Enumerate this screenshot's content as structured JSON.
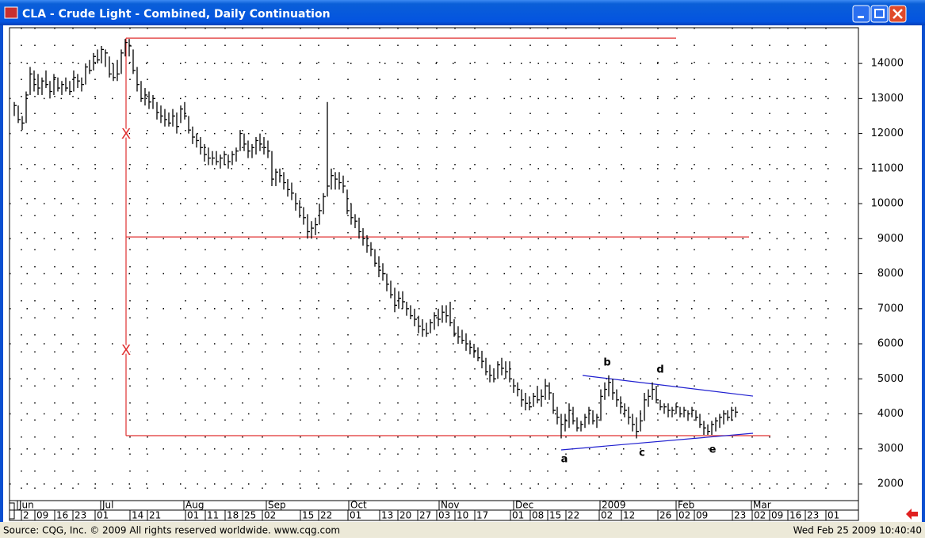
{
  "chart_data": {
    "type": "ohlc",
    "title": "CLA - Crude Light - Combined, Daily Continuation",
    "source": "Source: CQG, Inc. © 2009 All rights reserved worldwide. www.cqg.com",
    "timestamp": "Wed Feb 25 2009 10:40:40",
    "color": "#000000",
    "grid": true,
    "ylim": [
      1525,
      15020
    ],
    "yticks": [
      2000,
      3000,
      4000,
      5000,
      6000,
      7000,
      8000,
      9000,
      10000,
      11000,
      12000,
      13000,
      14000
    ],
    "xlim": [
      -1.2,
      213
    ],
    "month_ticks": [
      {
        "value": 0.8,
        "label": "Jun"
      },
      {
        "value": 21.8,
        "label": "Jul"
      },
      {
        "value": 42.8,
        "label": "Aug"
      },
      {
        "value": 63.6,
        "label": "Sep"
      },
      {
        "value": 84.4,
        "label": "Oct"
      },
      {
        "value": 107.2,
        "label": "Nov"
      },
      {
        "value": 126.0,
        "label": "Dec"
      },
      {
        "value": 147.8,
        "label": "2009"
      },
      {
        "value": 167.0,
        "label": "Feb"
      },
      {
        "value": 186.0,
        "label": "Mar"
      }
    ],
    "xticks": [
      {
        "value": 1.8,
        "label": "2"
      },
      {
        "value": 5.2,
        "label": "09"
      },
      {
        "value": 10.2,
        "label": "16"
      },
      {
        "value": 14.8,
        "label": "23"
      },
      {
        "value": 20.4,
        "label": "01"
      },
      {
        "value": 29.2,
        "label": "14"
      },
      {
        "value": 33.6,
        "label": "21"
      },
      {
        "value": 43.2,
        "label": "01"
      },
      {
        "value": 48.2,
        "label": "11"
      },
      {
        "value": 53.2,
        "label": "18"
      },
      {
        "value": 57.6,
        "label": "25"
      },
      {
        "value": 62.6,
        "label": "02"
      },
      {
        "value": 72.2,
        "label": "15"
      },
      {
        "value": 76.8,
        "label": "22"
      },
      {
        "value": 84.2,
        "label": "01"
      },
      {
        "value": 92.2,
        "label": "13"
      },
      {
        "value": 96.8,
        "label": "20"
      },
      {
        "value": 101.8,
        "label": "27"
      },
      {
        "value": 106.6,
        "label": "03"
      },
      {
        "value": 111.2,
        "label": "10"
      },
      {
        "value": 116.2,
        "label": "17"
      },
      {
        "value": 125.2,
        "label": "01"
      },
      {
        "value": 130.2,
        "label": "08"
      },
      {
        "value": 134.6,
        "label": "15"
      },
      {
        "value": 139.2,
        "label": "22"
      },
      {
        "value": 147.6,
        "label": "02"
      },
      {
        "value": 153.2,
        "label": "12"
      },
      {
        "value": 162.4,
        "label": "26"
      },
      {
        "value": 167.2,
        "label": "02"
      },
      {
        "value": 171.6,
        "label": "09"
      },
      {
        "value": 181.2,
        "label": "23"
      },
      {
        "value": 186.2,
        "label": "02"
      },
      {
        "value": 190.6,
        "label": "09"
      },
      {
        "value": 195.2,
        "label": "16"
      },
      {
        "value": 199.6,
        "label": "23"
      },
      {
        "value": 204.8,
        "label": "01"
      }
    ],
    "bars": [
      [
        12900,
        12500,
        12800
      ],
      [
        12800,
        12300,
        12400
      ],
      [
        12500,
        12100,
        12300
      ],
      [
        13200,
        12300,
        13100
      ],
      [
        13900,
        13100,
        13700
      ],
      [
        13800,
        13200,
        13400
      ],
      [
        13700,
        13100,
        13300
      ],
      [
        13600,
        13100,
        13500
      ],
      [
        13800,
        13300,
        13400
      ],
      [
        13500,
        13000,
        13200
      ],
      [
        13700,
        13100,
        13600
      ],
      [
        13600,
        13200,
        13300
      ],
      [
        13500,
        13100,
        13400
      ],
      [
        13600,
        13200,
        13300
      ],
      [
        13500,
        13100,
        13200
      ],
      [
        13800,
        13200,
        13600
      ],
      [
        13700,
        13300,
        13500
      ],
      [
        13600,
        13200,
        13400
      ],
      [
        14000,
        13400,
        13900
      ],
      [
        14100,
        13700,
        13800
      ],
      [
        14300,
        13800,
        14200
      ],
      [
        14400,
        14000,
        14100
      ],
      [
        14500,
        14000,
        14400
      ],
      [
        14400,
        13900,
        14300
      ],
      [
        14200,
        13600,
        13700
      ],
      [
        14000,
        13500,
        13600
      ],
      [
        14100,
        13500,
        13700
      ],
      [
        14400,
        13700,
        14300
      ],
      [
        14700,
        14200,
        14600
      ],
      [
        14700,
        14200,
        14500
      ],
      [
        14400,
        13700,
        13800
      ],
      [
        13900,
        13200,
        13400
      ],
      [
        13500,
        12900,
        13000
      ],
      [
        13300,
        12800,
        13100
      ],
      [
        13200,
        12700,
        12900
      ],
      [
        13100,
        12700,
        13000
      ],
      [
        12900,
        12400,
        12600
      ],
      [
        12800,
        12300,
        12500
      ],
      [
        12700,
        12200,
        12400
      ],
      [
        12600,
        12200,
        12300
      ],
      [
        12700,
        12200,
        12500
      ],
      [
        12600,
        12000,
        12200
      ],
      [
        12800,
        12300,
        12700
      ],
      [
        12900,
        12400,
        12500
      ],
      [
        12500,
        12000,
        12100
      ],
      [
        12200,
        11700,
        11900
      ],
      [
        12000,
        11600,
        11800
      ],
      [
        11900,
        11400,
        11600
      ],
      [
        11700,
        11200,
        11400
      ],
      [
        11600,
        11100,
        11300
      ],
      [
        11500,
        11100,
        11300
      ],
      [
        11500,
        11100,
        11200
      ],
      [
        11400,
        11000,
        11300
      ],
      [
        11500,
        11100,
        11400
      ],
      [
        11400,
        11000,
        11200
      ],
      [
        11500,
        11100,
        11400
      ],
      [
        11600,
        11200,
        11500
      ],
      [
        12100,
        11500,
        12000
      ],
      [
        12000,
        11500,
        11700
      ],
      [
        11800,
        11300,
        11500
      ],
      [
        11700,
        11300,
        11600
      ],
      [
        11900,
        11400,
        11800
      ],
      [
        12000,
        11500,
        11700
      ],
      [
        11900,
        11400,
        11600
      ],
      [
        11800,
        11300,
        11500
      ],
      [
        11500,
        10500,
        10700
      ],
      [
        11000,
        10500,
        10900
      ],
      [
        11000,
        10600,
        10800
      ],
      [
        10900,
        10400,
        10600
      ],
      [
        10700,
        10200,
        10400
      ],
      [
        10600,
        10100,
        10300
      ],
      [
        10300,
        9800,
        10000
      ],
      [
        10100,
        9600,
        9900
      ],
      [
        9900,
        9400,
        9600
      ],
      [
        9700,
        9000,
        9200
      ],
      [
        9500,
        9000,
        9300
      ],
      [
        9600,
        9100,
        9400
      ],
      [
        10000,
        9400,
        9800
      ],
      [
        10300,
        9700,
        10200
      ],
      [
        12900,
        10200,
        10500
      ],
      [
        11000,
        10400,
        10800
      ],
      [
        10900,
        10400,
        10700
      ],
      [
        10900,
        10400,
        10600
      ],
      [
        10800,
        10300,
        10500
      ],
      [
        10400,
        9700,
        9800
      ],
      [
        10000,
        9400,
        9600
      ],
      [
        9700,
        9300,
        9500
      ],
      [
        9600,
        9000,
        9200
      ],
      [
        9300,
        8800,
        9000
      ],
      [
        9100,
        8600,
        8800
      ],
      [
        8900,
        8500,
        8700
      ],
      [
        8700,
        8200,
        8300
      ],
      [
        8500,
        7900,
        8100
      ],
      [
        8300,
        7800,
        8000
      ],
      [
        8000,
        7500,
        7700
      ],
      [
        7800,
        7300,
        7400
      ],
      [
        7600,
        6900,
        7100
      ],
      [
        7500,
        7000,
        7300
      ],
      [
        7500,
        7000,
        7200
      ],
      [
        7200,
        6800,
        7000
      ],
      [
        7100,
        6700,
        6800
      ],
      [
        7000,
        6500,
        6700
      ],
      [
        6800,
        6300,
        6500
      ],
      [
        6700,
        6200,
        6400
      ],
      [
        6600,
        6200,
        6300
      ],
      [
        6700,
        6300,
        6600
      ],
      [
        6900,
        6400,
        6800
      ],
      [
        7000,
        6500,
        6700
      ],
      [
        7100,
        6600,
        6900
      ],
      [
        7100,
        6600,
        6800
      ],
      [
        7200,
        6500,
        6600
      ],
      [
        6700,
        6200,
        6300
      ],
      [
        6500,
        6000,
        6200
      ],
      [
        6400,
        6000,
        6100
      ],
      [
        6300,
        5800,
        6000
      ],
      [
        6100,
        5700,
        5900
      ],
      [
        6000,
        5600,
        5800
      ],
      [
        5900,
        5500,
        5600
      ],
      [
        5800,
        5300,
        5500
      ],
      [
        5600,
        5100,
        5200
      ],
      [
        5400,
        4900,
        5100
      ],
      [
        5300,
        4900,
        5000
      ],
      [
        5500,
        5000,
        5400
      ],
      [
        5600,
        5100,
        5300
      ],
      [
        5500,
        5000,
        5200
      ],
      [
        5500,
        4900,
        5000
      ],
      [
        5000,
        4600,
        4800
      ],
      [
        4900,
        4500,
        4700
      ],
      [
        4700,
        4200,
        4400
      ],
      [
        4600,
        4100,
        4300
      ],
      [
        4500,
        4100,
        4200
      ],
      [
        4600,
        4200,
        4500
      ],
      [
        4800,
        4300,
        4400
      ],
      [
        4700,
        4200,
        4500
      ],
      [
        5000,
        4400,
        4800
      ],
      [
        4900,
        4400,
        4600
      ],
      [
        4600,
        4000,
        4100
      ],
      [
        4200,
        3700,
        3900
      ],
      [
        4000,
        3300,
        3700
      ],
      [
        4000,
        3500,
        3800
      ],
      [
        4300,
        3600,
        4100
      ],
      [
        4200,
        3700,
        3800
      ],
      [
        3900,
        3500,
        3600
      ],
      [
        3800,
        3500,
        3700
      ],
      [
        4000,
        3600,
        3900
      ],
      [
        4200,
        3700,
        4100
      ],
      [
        4100,
        3700,
        3800
      ],
      [
        4000,
        3600,
        3900
      ],
      [
        4700,
        3800,
        4500
      ],
      [
        4900,
        4400,
        4700
      ],
      [
        5100,
        4500,
        4900
      ],
      [
        5000,
        4400,
        4600
      ],
      [
        4700,
        4200,
        4400
      ],
      [
        4500,
        4000,
        4200
      ],
      [
        4300,
        3900,
        4100
      ],
      [
        4200,
        3700,
        3900
      ],
      [
        4000,
        3500,
        3700
      ],
      [
        3900,
        3300,
        3500
      ],
      [
        4100,
        3500,
        3800
      ],
      [
        4600,
        3800,
        4400
      ],
      [
        4700,
        4200,
        4500
      ],
      [
        4900,
        4400,
        4700
      ],
      [
        4800,
        4300,
        4400
      ],
      [
        4400,
        4100,
        4200
      ],
      [
        4300,
        4000,
        4200
      ],
      [
        4300,
        3900,
        4100
      ],
      [
        4200,
        3900,
        4100
      ],
      [
        4300,
        4000,
        4200
      ],
      [
        4200,
        3900,
        4000
      ],
      [
        4200,
        3900,
        4100
      ],
      [
        4100,
        3800,
        4000
      ],
      [
        4200,
        3900,
        4100
      ],
      [
        4100,
        3800,
        3900
      ],
      [
        4000,
        3600,
        3700
      ],
      [
        3800,
        3400,
        3600
      ],
      [
        3700,
        3400,
        3500
      ],
      [
        3800,
        3400,
        3700
      ],
      [
        3900,
        3500,
        3800
      ],
      [
        4000,
        3600,
        3900
      ],
      [
        4100,
        3700,
        4000
      ],
      [
        4100,
        3800,
        3900
      ],
      [
        4200,
        3800,
        4100
      ],
      [
        4200,
        3900,
        4050
      ]
    ],
    "lines": [
      {
        "color": "#e03030",
        "from": [
          28.2,
          14723
        ],
        "to": [
          167.0,
          14723
        ]
      },
      {
        "color": "#e03030",
        "from": [
          28.2,
          9050
        ],
        "to": [
          185.4,
          9050
        ]
      },
      {
        "color": "#e03030",
        "from": [
          28.2,
          3379
        ],
        "to": [
          190.8,
          3379
        ]
      },
      {
        "color": "#e03030",
        "from": [
          28.2,
          14723
        ],
        "to": [
          28.2,
          3379
        ]
      },
      {
        "color": "#2020d0",
        "from": [
          143.4,
          5096
        ],
        "to": [
          186.4,
          4508
        ]
      },
      {
        "color": "#2020d0",
        "from": [
          138.0,
          2972
        ],
        "to": [
          186.4,
          3446
        ]
      }
    ],
    "labels": [
      {
        "text": "X",
        "x": 28.2,
        "y": 11966,
        "color": "#e03030"
      },
      {
        "text": "X",
        "x": 28.2,
        "y": 5797,
        "color": "#e03030"
      },
      {
        "text": "a",
        "x": 138.8,
        "y": 2700,
        "color": "#000000"
      },
      {
        "text": "b",
        "x": 149.6,
        "y": 5458,
        "color": "#000000"
      },
      {
        "text": "c",
        "x": 158.4,
        "y": 2881,
        "color": "#000000"
      },
      {
        "text": "d",
        "x": 163.0,
        "y": 5254,
        "color": "#000000"
      },
      {
        "text": "e",
        "x": 176.2,
        "y": 2972,
        "color": "#000000"
      }
    ]
  }
}
